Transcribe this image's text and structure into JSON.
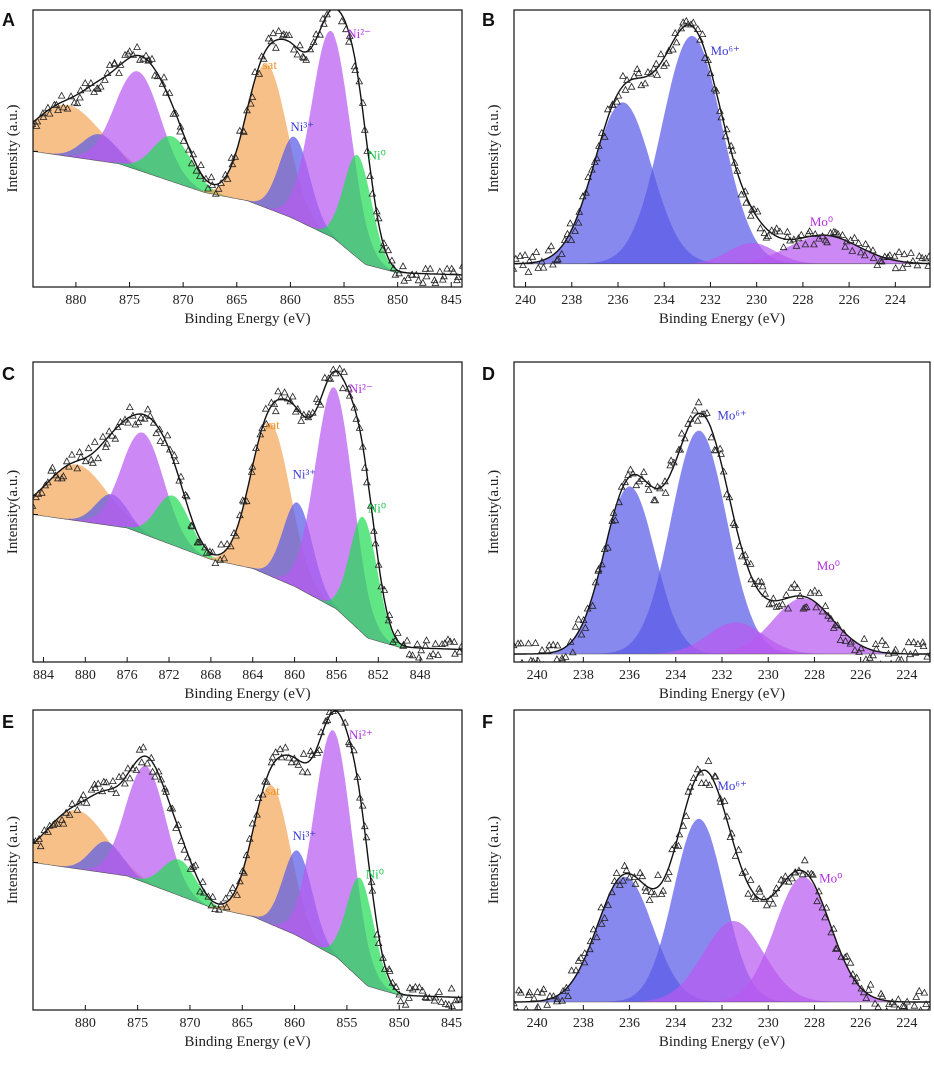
{
  "chart_data": [
    {
      "panel": "A",
      "type": "area",
      "xlabel": "Binding Energy (eV)",
      "ylabel": "Intensity (a.u.)",
      "xlim": [
        884,
        844
      ],
      "xticks": [
        880,
        875,
        870,
        865,
        860,
        855,
        850,
        845
      ],
      "ylim": [
        0,
        1.2
      ],
      "base": [
        [
          884,
          0.62
        ],
        [
          876,
          0.56
        ],
        [
          872,
          0.49
        ],
        [
          868,
          0.42
        ],
        [
          864,
          0.38
        ],
        [
          860,
          0.3
        ],
        [
          856,
          0.2
        ],
        [
          853,
          0.07
        ],
        [
          850,
          0.03
        ],
        [
          844,
          0.02
        ]
      ],
      "envelope_top": 1.2,
      "envelope_bottom": 0.02,
      "peaks": [
        {
          "center": 880.8,
          "height": 0.25,
          "width": 3.0,
          "color": "#f5a75c"
        },
        {
          "center": 877.8,
          "height": 0.13,
          "width": 1.6,
          "color": "#5a5ce8"
        },
        {
          "center": 874.2,
          "height": 0.48,
          "width": 2.1,
          "color": "#b85af0"
        },
        {
          "center": 871.0,
          "height": 0.22,
          "width": 1.8,
          "color": "#22dd55"
        },
        {
          "center": 862.2,
          "height": 0.7,
          "width": 1.9,
          "color": "#f5a75c"
        },
        {
          "center": 859.6,
          "height": 0.4,
          "width": 1.4,
          "color": "#5a5ce8"
        },
        {
          "center": 856.2,
          "height": 1.0,
          "width": 1.8,
          "color": "#b85af0"
        },
        {
          "center": 853.7,
          "height": 0.5,
          "width": 1.3,
          "color": "#22dd55"
        }
      ],
      "labels": [
        {
          "text": "sat",
          "x": 862.6,
          "y": 1.02,
          "color": "#f0922a"
        },
        {
          "text": "Ni³⁺",
          "x": 860.0,
          "y": 0.72,
          "color": "#3b3bd6"
        },
        {
          "text": "Ni²⁻",
          "x": 854.7,
          "y": 1.17,
          "color": "#b030e0"
        },
        {
          "text": "Ni⁰",
          "x": 852.8,
          "y": 0.58,
          "color": "#19c24a"
        }
      ]
    },
    {
      "panel": "B",
      "type": "area",
      "xlabel": "Binding Energy (eV)",
      "ylabel": "Intensity (a.u.)",
      "xlim": [
        240.5,
        222.5
      ],
      "xticks": [
        240,
        238,
        236,
        234,
        232,
        230,
        228,
        226,
        224
      ],
      "ylim": [
        0,
        1.3
      ],
      "base": [
        [
          240.5,
          0.08
        ],
        [
          222.5,
          0.08
        ]
      ],
      "envelope_top": 1.3,
      "envelope_bottom": 0.02,
      "peaks": [
        {
          "center": 235.8,
          "height": 0.85,
          "width": 1.25,
          "color": "#5a5ce8"
        },
        {
          "center": 232.8,
          "height": 1.2,
          "width": 1.3,
          "color": "#5a5ce8"
        },
        {
          "center": 230.2,
          "height": 0.11,
          "width": 1.0,
          "color": "#b85af0"
        },
        {
          "center": 227.1,
          "height": 0.15,
          "width": 1.5,
          "color": "#b85af0"
        }
      ],
      "labels": [
        {
          "text": "Mo⁶⁺",
          "x": 232.0,
          "y": 1.18,
          "color": "#3b3bd6"
        },
        {
          "text": "Mo⁰",
          "x": 227.7,
          "y": 0.28,
          "color": "#b030e0"
        }
      ]
    },
    {
      "panel": "C",
      "type": "area",
      "xlabel": "Binding Energy (eV)",
      "ylabel": "Intensity(a.u.)",
      "xlim": [
        885,
        844
      ],
      "xticks": [
        884,
        880,
        876,
        872,
        868,
        864,
        860,
        856,
        852,
        848
      ],
      "ylim": [
        0,
        1.2
      ],
      "base": [
        [
          885,
          0.62
        ],
        [
          876,
          0.56
        ],
        [
          872,
          0.49
        ],
        [
          868,
          0.42
        ],
        [
          864,
          0.38
        ],
        [
          860,
          0.3
        ],
        [
          856,
          0.2
        ],
        [
          853,
          0.07
        ],
        [
          850,
          0.03
        ],
        [
          844,
          0.02
        ]
      ],
      "envelope_top": 1.2,
      "envelope_bottom": 0.02,
      "peaks": [
        {
          "center": 880.8,
          "height": 0.25,
          "width": 2.8,
          "color": "#f5a75c"
        },
        {
          "center": 877.5,
          "height": 0.14,
          "width": 1.5,
          "color": "#5a5ce8"
        },
        {
          "center": 874.5,
          "height": 0.45,
          "width": 2.0,
          "color": "#b85af0"
        },
        {
          "center": 871.6,
          "height": 0.22,
          "width": 1.6,
          "color": "#22dd55"
        },
        {
          "center": 862.3,
          "height": 0.68,
          "width": 1.9,
          "color": "#f5a75c"
        },
        {
          "center": 859.7,
          "height": 0.38,
          "width": 1.4,
          "color": "#5a5ce8"
        },
        {
          "center": 856.2,
          "height": 0.98,
          "width": 1.8,
          "color": "#b85af0"
        },
        {
          "center": 853.4,
          "height": 0.52,
          "width": 1.3,
          "color": "#22dd55"
        }
      ],
      "labels": [
        {
          "text": "sat",
          "x": 862.8,
          "y": 1.0,
          "color": "#f0922a"
        },
        {
          "text": "Ni³⁺",
          "x": 860.2,
          "y": 0.78,
          "color": "#3b3bd6"
        },
        {
          "text": "Ni²⁻",
          "x": 854.8,
          "y": 1.16,
          "color": "#b030e0"
        },
        {
          "text": "Ni⁰",
          "x": 853.0,
          "y": 0.63,
          "color": "#19c24a"
        }
      ]
    },
    {
      "panel": "D",
      "type": "area",
      "xlabel": "Binding Energy (eV)",
      "ylabel": "Intensity(a.u.)",
      "xlim": [
        241,
        223
      ],
      "xticks": [
        240,
        238,
        236,
        234,
        232,
        230,
        228,
        226,
        224
      ],
      "ylim": [
        0,
        1.45
      ],
      "base": [
        [
          241,
          0.0
        ],
        [
          223,
          0.0
        ]
      ],
      "envelope_top": 1.45,
      "envelope_bottom": 0.02,
      "peaks": [
        {
          "center": 236.0,
          "height": 0.9,
          "width": 1.1,
          "color": "#5a5ce8"
        },
        {
          "center": 233.0,
          "height": 1.2,
          "width": 1.2,
          "color": "#5a5ce8"
        },
        {
          "center": 231.4,
          "height": 0.17,
          "width": 1.2,
          "color": "#b85af0"
        },
        {
          "center": 228.5,
          "height": 0.3,
          "width": 1.3,
          "color": "#b85af0"
        }
      ],
      "labels": [
        {
          "text": "Mo⁶⁺",
          "x": 232.2,
          "y": 1.26,
          "color": "#3b3bd6"
        },
        {
          "text": "Mo⁰",
          "x": 227.9,
          "y": 0.45,
          "color": "#b030e0"
        }
      ]
    },
    {
      "panel": "E",
      "type": "area",
      "xlabel": "Binding Energy (eV)",
      "ylabel": "Intensity (a.u.)",
      "xlim": [
        885,
        844
      ],
      "xticks": [
        880,
        875,
        870,
        865,
        860,
        855,
        850,
        845
      ],
      "ylim": [
        0,
        1.2
      ],
      "base": [
        [
          885,
          0.62
        ],
        [
          876,
          0.56
        ],
        [
          872,
          0.49
        ],
        [
          868,
          0.42
        ],
        [
          864,
          0.38
        ],
        [
          860,
          0.3
        ],
        [
          856,
          0.2
        ],
        [
          853,
          0.07
        ],
        [
          850,
          0.03
        ],
        [
          844,
          0.02
        ]
      ],
      "envelope_top": 1.2,
      "envelope_bottom": 0.02,
      "peaks": [
        {
          "center": 880.8,
          "height": 0.26,
          "width": 2.8,
          "color": "#f5a75c"
        },
        {
          "center": 878.0,
          "height": 0.14,
          "width": 1.5,
          "color": "#5a5ce8"
        },
        {
          "center": 874.2,
          "height": 0.52,
          "width": 1.9,
          "color": "#b85af0"
        },
        {
          "center": 871.0,
          "height": 0.16,
          "width": 1.6,
          "color": "#22dd55"
        },
        {
          "center": 862.2,
          "height": 0.62,
          "width": 1.8,
          "color": "#f5a75c"
        },
        {
          "center": 859.7,
          "height": 0.38,
          "width": 1.4,
          "color": "#5a5ce8"
        },
        {
          "center": 856.3,
          "height": 1.0,
          "width": 1.8,
          "color": "#b85af0"
        },
        {
          "center": 853.7,
          "height": 0.45,
          "width": 1.3,
          "color": "#22dd55"
        }
      ],
      "labels": [
        {
          "text": "sat",
          "x": 862.8,
          "y": 0.92,
          "color": "#f0922a"
        },
        {
          "text": "Ni³⁺",
          "x": 860.2,
          "y": 0.72,
          "color": "#3b3bd6"
        },
        {
          "text": "Ni²⁺",
          "x": 854.8,
          "y": 1.17,
          "color": "#b030e0"
        },
        {
          "text": "Ni⁰",
          "x": 853.2,
          "y": 0.55,
          "color": "#19c24a"
        }
      ]
    },
    {
      "panel": "F",
      "type": "area",
      "xlabel": "Binding Energy (eV)",
      "ylabel": "Intensity (a.u.)",
      "xlim": [
        241,
        223
      ],
      "xticks": [
        240,
        238,
        236,
        234,
        232,
        230,
        228,
        226,
        224
      ],
      "ylim": [
        0,
        1.4
      ],
      "base": [
        [
          241,
          0.0
        ],
        [
          223,
          0.0
        ]
      ],
      "envelope_top": 1.4,
      "envelope_bottom": 0.02,
      "peaks": [
        {
          "center": 236.2,
          "height": 0.65,
          "width": 1.2,
          "color": "#5a5ce8"
        },
        {
          "center": 233.0,
          "height": 0.95,
          "width": 1.1,
          "color": "#5a5ce8"
        },
        {
          "center": 231.5,
          "height": 0.42,
          "width": 1.3,
          "color": "#b85af0"
        },
        {
          "center": 228.5,
          "height": 0.65,
          "width": 1.2,
          "color": "#b85af0"
        }
      ],
      "labels": [
        {
          "text": "Mo⁶⁺",
          "x": 232.2,
          "y": 1.1,
          "color": "#3b3bd6"
        },
        {
          "text": "Mo⁰",
          "x": 227.8,
          "y": 0.62,
          "color": "#b030e0"
        }
      ]
    }
  ]
}
